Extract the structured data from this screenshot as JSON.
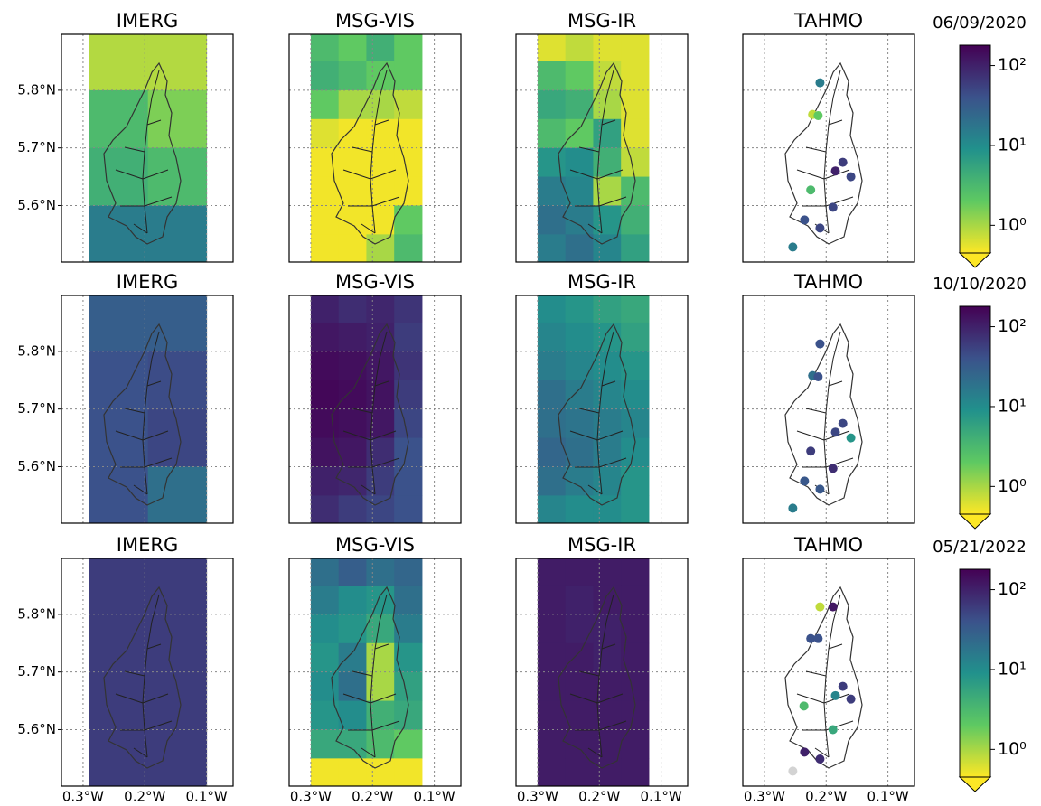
{
  "chart_data": [
    {
      "type": "map",
      "date": "06/09/2020",
      "xlim": [
        -0.335,
        -0.057
      ],
      "ylim": [
        5.502,
        5.897
      ],
      "xticks": [
        {
          "value": -0.3,
          "label": "0.3°W"
        },
        {
          "value": -0.2,
          "label": "0.2°W"
        },
        {
          "value": -0.1,
          "label": "0.1°W"
        }
      ],
      "yticks": [
        {
          "value": 5.6,
          "label": "5.6°N"
        },
        {
          "value": 5.7,
          "label": "5.7°N"
        },
        {
          "value": 5.8,
          "label": "5.8°N"
        }
      ],
      "show_xtick_labels": false,
      "grid": true,
      "log_scale": true,
      "colorbar": {
        "lim": [
          0.45,
          180
        ],
        "ticks": [
          {
            "value": 1,
            "label": "10⁰"
          },
          {
            "value": 10,
            "label": "10¹"
          },
          {
            "value": 100,
            "label": "10²"
          }
        ],
        "colormap": [
          "#fde725",
          "#5ec962",
          "#21918c",
          "#3b528b",
          "#440154"
        ]
      },
      "panels": [
        {
          "title": "IMERG",
          "extent": {
            "x": [
              -0.29,
              -0.1
            ],
            "y": [
              5.5,
              5.9
            ]
          },
          "values": [
            [
              0.9,
              0.9
            ],
            [
              3,
              1.5
            ],
            [
              4,
              3
            ],
            [
              15,
              15
            ]
          ]
        },
        {
          "title": "MSG-VIS",
          "extent": {
            "x": [
              -0.3,
              -0.12
            ],
            "y": [
              5.5,
              5.9
            ]
          },
          "values": [
            [
              3,
              2,
              4,
              2
            ],
            [
              4,
              3,
              2,
              2
            ],
            [
              2,
              1,
              1,
              0.8
            ],
            [
              0.6,
              0.5,
              0.5,
              0.5
            ],
            [
              0.5,
              0.5,
              0.5,
              0.5
            ],
            [
              0.5,
              0.5,
              0.5,
              0.5
            ],
            [
              0.5,
              0.5,
              0.5,
              2
            ],
            [
              0.5,
              0.5,
              1,
              3
            ]
          ]
        },
        {
          "title": "MSG-IR",
          "extent": {
            "x": [
              -0.3,
              -0.12
            ],
            "y": [
              5.5,
              5.9
            ]
          },
          "values": [
            [
              0.6,
              0.8,
              0.6,
              0.6
            ],
            [
              3,
              2,
              0.8,
              0.6
            ],
            [
              5,
              4,
              1,
              0.6
            ],
            [
              3,
              2,
              6,
              0.6
            ],
            [
              8,
              10,
              4,
              0.8
            ],
            [
              15,
              12,
              1,
              3
            ],
            [
              20,
              15,
              8,
              4
            ],
            [
              15,
              20,
              12,
              6
            ]
          ]
        },
        {
          "title": "TAHMO",
          "x": [
            -0.21,
            -0.222,
            -0.213,
            -0.173,
            -0.185,
            -0.16,
            -0.225,
            -0.189,
            -0.235,
            -0.21,
            -0.254
          ],
          "y": [
            5.813,
            5.758,
            5.756,
            5.675,
            5.66,
            5.65,
            5.627,
            5.597,
            5.575,
            5.561,
            5.528
          ],
          "values": [
            15,
            0.8,
            2,
            60,
            100,
            50,
            3,
            50,
            40,
            50,
            15
          ]
        }
      ]
    },
    {
      "type": "map",
      "date": "10/10/2020",
      "xlim": [
        -0.335,
        -0.057
      ],
      "ylim": [
        5.502,
        5.897
      ],
      "xticks": [
        {
          "value": -0.3,
          "label": "0.3°W"
        },
        {
          "value": -0.2,
          "label": "0.2°W"
        },
        {
          "value": -0.1,
          "label": "0.1°W"
        }
      ],
      "yticks": [
        {
          "value": 5.6,
          "label": "5.6°N"
        },
        {
          "value": 5.7,
          "label": "5.7°N"
        },
        {
          "value": 5.8,
          "label": "5.8°N"
        }
      ],
      "show_xtick_labels": false,
      "grid": true,
      "log_scale": true,
      "colorbar": {
        "lim": [
          0.45,
          180
        ],
        "ticks": [
          {
            "value": 1,
            "label": "10⁰"
          },
          {
            "value": 10,
            "label": "10¹"
          },
          {
            "value": 100,
            "label": "10²"
          }
        ],
        "colormap": [
          "#fde725",
          "#5ec962",
          "#21918c",
          "#3b528b",
          "#440154"
        ]
      },
      "panels": [
        {
          "title": "IMERG",
          "extent": {
            "x": [
              -0.29,
              -0.1
            ],
            "y": [
              5.5,
              5.9
            ]
          },
          "values": [
            [
              30,
              30
            ],
            [
              40,
              45
            ],
            [
              40,
              50
            ],
            [
              40,
              20
            ]
          ]
        },
        {
          "title": "MSG-VIS",
          "extent": {
            "x": [
              -0.3,
              -0.12
            ],
            "y": [
              5.5,
              5.9
            ]
          },
          "values": [
            [
              100,
              80,
              90,
              70
            ],
            [
              120,
              110,
              100,
              60
            ],
            [
              150,
              140,
              120,
              70
            ],
            [
              160,
              150,
              130,
              60
            ],
            [
              150,
              140,
              120,
              50
            ],
            [
              130,
              120,
              80,
              40
            ],
            [
              100,
              90,
              60,
              40
            ],
            [
              80,
              60,
              50,
              40
            ]
          ]
        },
        {
          "title": "MSG-IR",
          "extent": {
            "x": [
              -0.3,
              -0.12
            ],
            "y": [
              5.5,
              5.9
            ]
          },
          "values": [
            [
              10,
              8,
              6,
              5
            ],
            [
              12,
              10,
              8,
              6
            ],
            [
              15,
              12,
              10,
              8
            ],
            [
              20,
              15,
              12,
              10
            ],
            [
              20,
              18,
              15,
              12
            ],
            [
              25,
              20,
              15,
              10
            ],
            [
              20,
              15,
              12,
              8
            ],
            [
              12,
              10,
              10,
              8
            ]
          ]
        },
        {
          "title": "TAHMO",
          "x": [
            -0.21,
            -0.222,
            -0.213,
            -0.173,
            -0.185,
            -0.16,
            -0.225,
            -0.189,
            -0.235,
            -0.21,
            -0.254
          ],
          "y": [
            5.813,
            5.758,
            5.756,
            5.675,
            5.66,
            5.65,
            5.627,
            5.597,
            5.575,
            5.561,
            5.528
          ],
          "values": [
            40,
            20,
            40,
            50,
            50,
            8,
            60,
            80,
            35,
            35,
            15
          ]
        }
      ]
    },
    {
      "type": "map",
      "date": "05/21/2022",
      "xlim": [
        -0.335,
        -0.057
      ],
      "ylim": [
        5.502,
        5.897
      ],
      "xticks": [
        {
          "value": -0.3,
          "label": "0.3°W"
        },
        {
          "value": -0.2,
          "label": "0.2°W"
        },
        {
          "value": -0.1,
          "label": "0.1°W"
        }
      ],
      "yticks": [
        {
          "value": 5.6,
          "label": "5.6°N"
        },
        {
          "value": 5.7,
          "label": "5.7°N"
        },
        {
          "value": 5.8,
          "label": "5.8°N"
        }
      ],
      "show_xtick_labels": true,
      "grid": true,
      "log_scale": true,
      "colorbar": {
        "lim": [
          0.45,
          180
        ],
        "ticks": [
          {
            "value": 1,
            "label": "10⁰"
          },
          {
            "value": 10,
            "label": "10¹"
          },
          {
            "value": 100,
            "label": "10²"
          }
        ],
        "colormap": [
          "#fde725",
          "#5ec962",
          "#21918c",
          "#3b528b",
          "#440154"
        ]
      },
      "panels": [
        {
          "title": "IMERG",
          "extent": {
            "x": [
              -0.29,
              -0.1
            ],
            "y": [
              5.5,
              5.9
            ]
          },
          "values": [
            [
              60,
              60
            ],
            [
              60,
              60
            ],
            [
              60,
              60
            ],
            [
              60,
              60
            ]
          ]
        },
        {
          "title": "MSG-VIS",
          "extent": {
            "x": [
              -0.3,
              -0.12
            ],
            "y": [
              5.5,
              5.9
            ]
          },
          "values": [
            [
              20,
              30,
              20,
              25
            ],
            [
              15,
              10,
              8,
              20
            ],
            [
              10,
              8,
              5,
              15
            ],
            [
              8,
              15,
              1,
              8
            ],
            [
              10,
              20,
              1,
              6
            ],
            [
              8,
              10,
              4,
              5
            ],
            [
              5,
              5,
              3,
              2
            ],
            [
              0.5,
              0.5,
              0.5,
              0.5
            ]
          ]
        },
        {
          "title": "MSG-IR",
          "extent": {
            "x": [
              -0.3,
              -0.12
            ],
            "y": [
              5.5,
              5.9
            ]
          },
          "values": [
            [
              110,
              110,
              110,
              110
            ],
            [
              110,
              100,
              110,
              110
            ],
            [
              110,
              100,
              100,
              110
            ],
            [
              110,
              110,
              100,
              110
            ],
            [
              110,
              110,
              110,
              110
            ],
            [
              110,
              110,
              110,
              110
            ],
            [
              110,
              110,
              110,
              110
            ],
            [
              110,
              110,
              110,
              110
            ]
          ]
        },
        {
          "title": "TAHMO",
          "x": [
            -0.21,
            -0.189,
            -0.225,
            -0.213,
            -0.173,
            -0.185,
            -0.16,
            -0.236,
            -0.189,
            -0.235,
            -0.21,
            -0.254
          ],
          "y": [
            5.813,
            5.813,
            5.758,
            5.758,
            5.675,
            5.659,
            5.653,
            5.641,
            5.6,
            5.561,
            5.549,
            5.528
          ],
          "values": [
            0.8,
            120,
            40,
            40,
            60,
            12,
            60,
            3,
            5,
            100,
            80,
            null
          ]
        }
      ]
    }
  ]
}
